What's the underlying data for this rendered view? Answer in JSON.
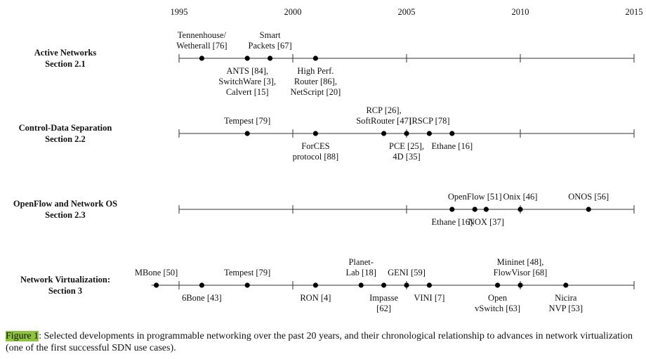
{
  "axis": {
    "lim": [
      1995,
      2015
    ],
    "ticks": [
      1995,
      2000,
      2005,
      2010,
      2015
    ]
  },
  "rows": [
    {
      "label": [
        "Active Networks",
        "Section 2.1"
      ],
      "events": [
        {
          "year": 1996,
          "side": "above",
          "lines": [
            "Tennenhouse/",
            "Wetherall [76]"
          ]
        },
        {
          "year": 1998,
          "side": "below",
          "lines": [
            "ANTS [84],",
            "SwitchWare [3],",
            "Calvert [15]"
          ]
        },
        {
          "year": 1999,
          "side": "above",
          "lines": [
            "Smart",
            "Packets [67]"
          ]
        },
        {
          "year": 2001,
          "side": "below",
          "lines": [
            "High Perf.",
            "Router [86],",
            "NetScript [20]"
          ]
        }
      ]
    },
    {
      "label": [
        "Control-Data Separation",
        "Section 2.2"
      ],
      "events": [
        {
          "year": 1998,
          "side": "above",
          "lines": [
            "Tempest [79]"
          ]
        },
        {
          "year": 2001,
          "side": "below",
          "lines": [
            "ForCES",
            "protocol [88]"
          ]
        },
        {
          "year": 2004,
          "side": "above",
          "lines": [
            "RCP [26],",
            "SoftRouter [47]"
          ]
        },
        {
          "year": 2005,
          "side": "below",
          "lines": [
            "PCE [25],",
            "4D [35]"
          ]
        },
        {
          "year": 2006,
          "side": "above",
          "lines": [
            "IRSCP [78]"
          ]
        },
        {
          "year": 2007,
          "side": "below",
          "lines": [
            "Ethane [16]"
          ]
        }
      ]
    },
    {
      "label": [
        "OpenFlow and Network OS",
        "Section 2.3"
      ],
      "events": [
        {
          "year": 2007,
          "side": "below",
          "lines": [
            "Ethane [16]"
          ]
        },
        {
          "year": 2008,
          "side": "above",
          "lines": [
            "OpenFlow [51]"
          ]
        },
        {
          "year": 2008.5,
          "side": "below",
          "lines": [
            "NOX [37]"
          ]
        },
        {
          "year": 2010,
          "side": "above",
          "lines": [
            "Onix [46]"
          ]
        },
        {
          "year": 2013,
          "side": "above",
          "lines": [
            "ONOS [56]"
          ]
        }
      ]
    },
    {
      "label": [
        "Network Virtualization:",
        "Section 3"
      ],
      "events": [
        {
          "year": 1994,
          "side": "above",
          "lines": [
            "MBone [50]"
          ]
        },
        {
          "year": 1996,
          "side": "below",
          "lines": [
            "6Bone [43]"
          ]
        },
        {
          "year": 1998,
          "side": "above",
          "lines": [
            "Tempest [79]"
          ]
        },
        {
          "year": 2001,
          "side": "below",
          "lines": [
            "RON [4]"
          ]
        },
        {
          "year": 2003,
          "side": "above",
          "lines": [
            "Planet-",
            "Lab [18]"
          ]
        },
        {
          "year": 2004,
          "side": "below",
          "lines": [
            "Impasse",
            "[62]"
          ]
        },
        {
          "year": 2005,
          "side": "above",
          "lines": [
            "GENI [59]"
          ]
        },
        {
          "year": 2006,
          "side": "below",
          "lines": [
            "VINI [7]"
          ]
        },
        {
          "year": 2009,
          "side": "below",
          "lines": [
            "Open",
            "vSwitch [63]"
          ]
        },
        {
          "year": 2010,
          "side": "above",
          "lines": [
            "Mininet [48],",
            "FlowVisor [68]"
          ]
        },
        {
          "year": 2012,
          "side": "below",
          "lines": [
            "Nicira",
            "NVP [53]"
          ]
        }
      ]
    }
  ],
  "caption": {
    "label": "Figure 1",
    "text": ": Selected developments in programmable networking over the past 20 years, and their chronological relationship to advances in network virtualization (one of the first successful SDN use cases)."
  }
}
